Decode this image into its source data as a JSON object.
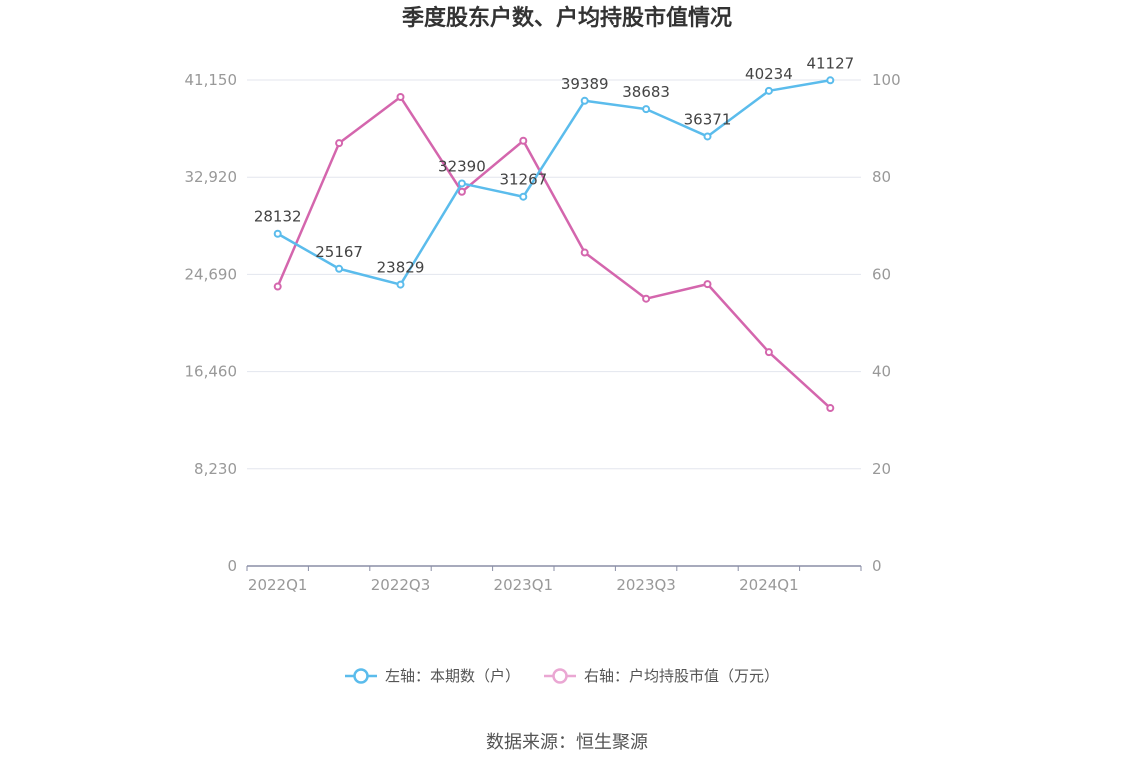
{
  "chart_data": {
    "type": "line",
    "title": "季度股东户数、户均持股市值情况",
    "categories": [
      "2022Q1",
      "2022Q2",
      "2022Q3",
      "2022Q4",
      "2023Q1",
      "2023Q2",
      "2023Q3",
      "2023Q4",
      "2024Q1",
      "2024Q2"
    ],
    "x_tick_labels": [
      "2022Q1",
      "2022Q3",
      "2023Q1",
      "2023Q3",
      "2024Q1"
    ],
    "left_axis": {
      "ylim": [
        0,
        41150
      ],
      "ticks": [
        "0",
        "8,230",
        "16,460",
        "24,690",
        "32,920",
        "41,150"
      ]
    },
    "right_axis": {
      "ylim": [
        0,
        100
      ],
      "ticks": [
        "0",
        "20",
        "40",
        "60",
        "80",
        "100"
      ]
    },
    "grid": true,
    "legend_position": "bottom-center",
    "series": [
      {
        "name": "左轴：本期数（户）",
        "axis": "left",
        "color": "#5bbcec",
        "values": [
          28132,
          25167,
          23829,
          32390,
          31267,
          39389,
          38683,
          36371,
          40234,
          41127
        ],
        "labels": [
          "28132",
          "25167",
          "23829",
          "32390",
          "31267",
          "39389",
          "38683",
          "36371",
          "40234",
          "41127"
        ]
      },
      {
        "name": "右轴：户均持股市值（万元）",
        "axis": "right",
        "color": "#d466ad",
        "legend_color": "#eaa7d3",
        "values": [
          57.5,
          87,
          96.5,
          77,
          87.5,
          64.5,
          55,
          58,
          44,
          32.5
        ]
      }
    ]
  },
  "source": "数据来源：恒生聚源"
}
